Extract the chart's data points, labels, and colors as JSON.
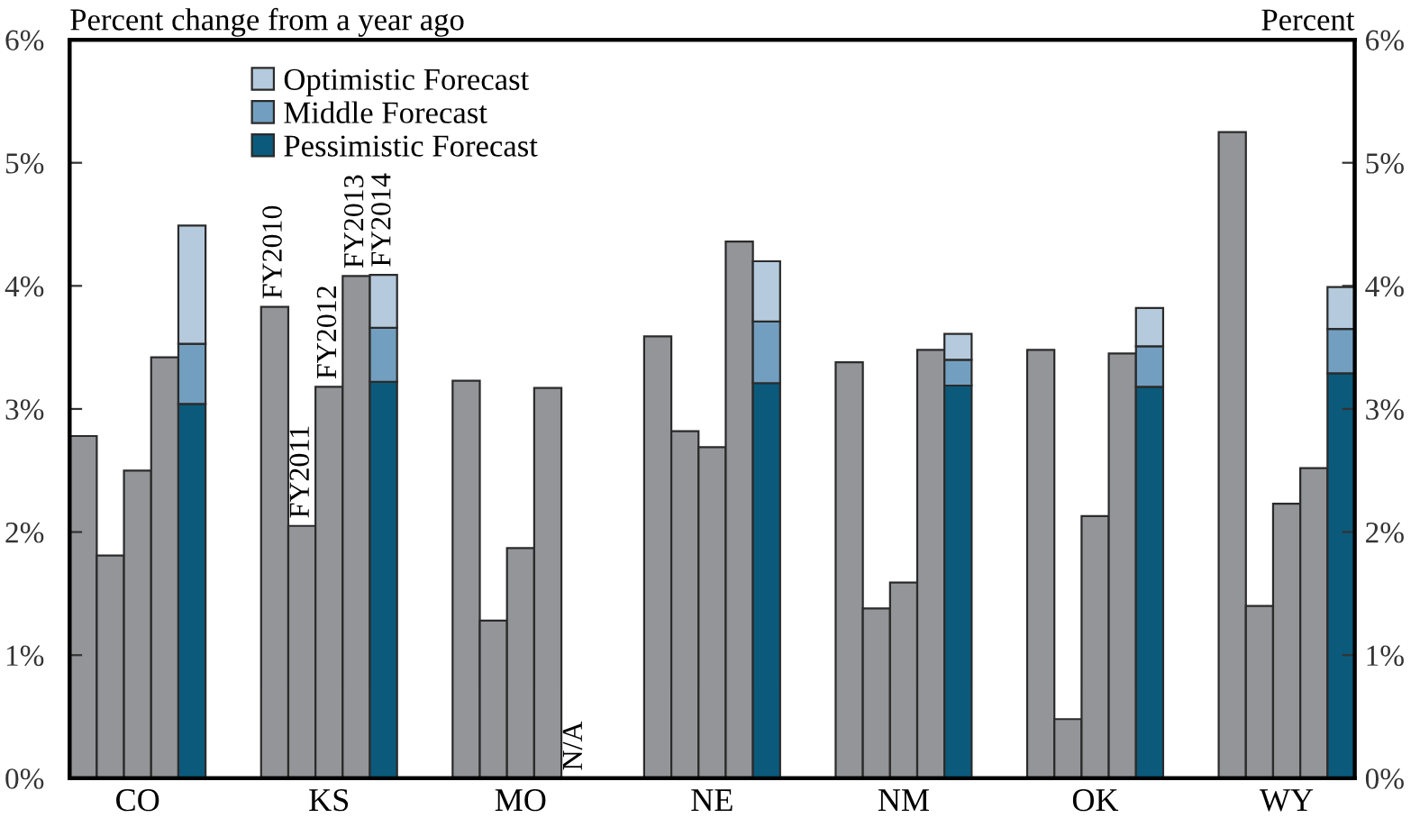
{
  "chart_data": [
    {
      "type": "bar",
      "ylabel": "Percent change from a year ago",
      "categories": [
        "CO",
        "KS",
        "MO",
        "NE",
        "NM",
        "OK",
        "WY"
      ],
      "series": [
        {
          "name": "FY2010",
          "color": "#939598",
          "values": [
            2.78,
            3.83,
            3.23,
            3.59,
            3.38,
            3.48,
            5.25
          ]
        },
        {
          "name": "FY2011",
          "color": "#939598",
          "values": [
            1.81,
            2.05,
            1.28,
            2.82,
            1.38,
            0.48,
            1.4
          ]
        },
        {
          "name": "FY2012",
          "color": "#939598",
          "values": [
            2.5,
            3.18,
            1.87,
            2.69,
            1.59,
            2.13,
            2.23
          ]
        },
        {
          "name": "FY2013",
          "color": "#939598",
          "values": [
            3.42,
            4.08,
            3.17,
            4.36,
            3.48,
            3.45,
            2.52
          ]
        }
      ],
      "ylim": [
        0,
        6
      ],
      "yticks": [
        {
          "value": 0,
          "label": "0%"
        },
        {
          "value": 1,
          "label": "1%"
        },
        {
          "value": 2,
          "label": "2%"
        },
        {
          "value": 3,
          "label": "3%"
        },
        {
          "value": 4,
          "label": "4%"
        },
        {
          "value": 5,
          "label": "5%"
        },
        {
          "value": 6,
          "label": "6%"
        }
      ],
      "grid": false
    },
    {
      "type": "bar",
      "y2label": "Percent",
      "categories": [
        null,
        null,
        null,
        null,
        null,
        null,
        null
      ],
      "stacked": true,
      "series": [
        {
          "name": "Pessimistic Forecast",
          "color": "#0b5a7b",
          "axis": "y2",
          "values": [
            3.04,
            3.22,
            null,
            3.21,
            3.19,
            3.18,
            3.29
          ]
        },
        {
          "name": "Middle Forecast",
          "color": "#729fbf",
          "axis": "y2",
          "values": [
            0.49,
            0.44,
            null,
            0.5,
            0.21,
            0.33,
            0.36
          ]
        },
        {
          "name": "Optimistic Forecast",
          "color": "#b5cadc",
          "axis": "y2",
          "values": [
            0.96,
            0.43,
            null,
            0.49,
            0.21,
            0.31,
            0.34
          ]
        }
      ],
      "annotations": [
        "FY2014",
        "N/A"
      ],
      "y2lim": [
        0,
        6
      ],
      "y2ticks": [
        {
          "value": 0,
          "label": "0%"
        },
        {
          "value": 1,
          "label": "1%"
        },
        {
          "value": 2,
          "label": "2%"
        },
        {
          "value": 3,
          "label": "3%"
        },
        {
          "value": 4,
          "label": "4%"
        },
        {
          "value": 5,
          "label": "5%"
        },
        {
          "value": 6,
          "label": "6%"
        }
      ],
      "grid": false,
      "legend": "top left"
    }
  ]
}
